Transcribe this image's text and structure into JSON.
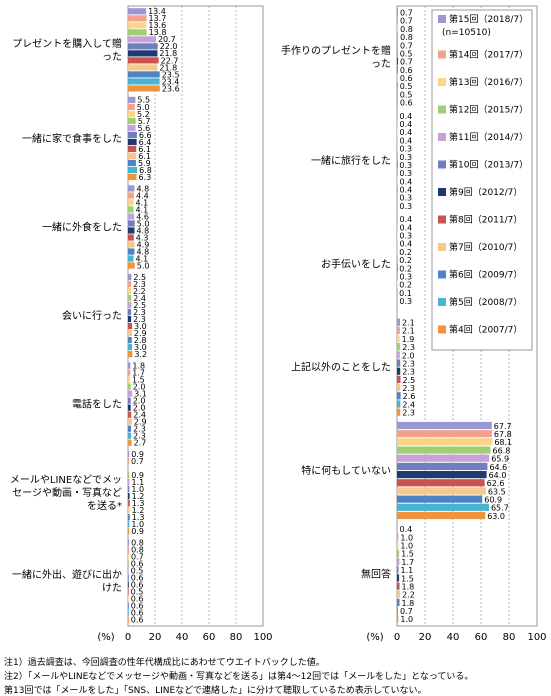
{
  "chart_data": [
    {
      "type": "bar",
      "orientation": "horizontal",
      "xlim": [
        0,
        100
      ],
      "x_ticks": [
        "0",
        "20",
        "40",
        "60",
        "80",
        "100"
      ],
      "unit_label": "(%)",
      "categories": [
        {
          "label": "プレゼントを購入して贈った",
          "values": [
            13.4,
            13.7,
            13.6,
            13.8,
            20.7,
            22.0,
            21.8,
            22.7,
            21.8,
            23.5,
            23.4,
            23.6
          ]
        },
        {
          "label": "一緒に家で食事をした",
          "values": [
            5.5,
            5.0,
            5.2,
            5.7,
            5.6,
            6.6,
            6.4,
            6.1,
            6.1,
            5.9,
            6.8,
            6.3
          ]
        },
        {
          "label": "一緒に外食をした",
          "values": [
            4.8,
            4.4,
            4.1,
            4.1,
            4.6,
            5.0,
            4.8,
            4.3,
            4.9,
            4.8,
            4.1,
            5.0
          ]
        },
        {
          "label": "会いに行った",
          "values": [
            2.5,
            2.3,
            2.2,
            2.4,
            2.5,
            2.3,
            2.3,
            3.0,
            2.9,
            2.8,
            3.0,
            3.2
          ]
        },
        {
          "label": "電話をした",
          "values": [
            1.8,
            1.7,
            1.5,
            2.0,
            3.1,
            2.0,
            2.0,
            2.4,
            2.9,
            2.3,
            2.3,
            2.7
          ]
        },
        {
          "label": "メールやLINEなどでメッセージや動画・写真などを送る*",
          "values": [
            0.9,
            0.7,
            null,
            0.9,
            1.1,
            1.0,
            1.2,
            1.3,
            1.2,
            1.3,
            1.0,
            0.9
          ]
        },
        {
          "label": "一緒に外出、遊びに出かけた",
          "values": [
            0.8,
            0.8,
            0.7,
            0.6,
            0.5,
            0.6,
            0.6,
            0.5,
            0.6,
            0.6,
            0.6,
            0.6
          ]
        }
      ]
    },
    {
      "type": "bar",
      "orientation": "horizontal",
      "xlim": [
        0,
        100
      ],
      "x_ticks": [
        "0",
        "20",
        "40",
        "60",
        "80",
        "100"
      ],
      "unit_label": "(%)",
      "categories": [
        {
          "label": "手作りのプレゼントを贈った",
          "values": [
            0.7,
            0.7,
            0.8,
            0.8,
            0.7,
            0.5,
            0.7,
            0.6,
            0.6,
            0.5,
            0.5,
            0.6
          ]
        },
        {
          "label": "一緒に旅行をした",
          "values": [
            0.4,
            0.4,
            0.4,
            0.4,
            0.3,
            0.3,
            0.3,
            0.3,
            0.4,
            0.4,
            0.3,
            0.3
          ]
        },
        {
          "label": "お手伝いをした",
          "values": [
            0.4,
            0.4,
            0.3,
            0.4,
            0.2,
            0.2,
            0.2,
            0.3,
            0.2,
            0.1,
            0.3,
            null
          ]
        },
        {
          "label": "上記以外のことをした",
          "values": [
            2.1,
            2.1,
            1.9,
            2.3,
            2.0,
            2.3,
            2.3,
            2.5,
            2.3,
            2.6,
            2.4,
            2.3
          ]
        },
        {
          "label": "特に何もしていない",
          "values": [
            67.7,
            67.8,
            68.1,
            66.8,
            65.9,
            64.6,
            64.0,
            62.6,
            63.5,
            60.9,
            65.7,
            63.0
          ]
        },
        {
          "label": "無回答",
          "values": [
            0.4,
            1.0,
            1.0,
            1.5,
            1.7,
            1.1,
            1.5,
            1.8,
            2.2,
            1.8,
            0.7,
            1.0
          ]
        }
      ]
    }
  ],
  "series": [
    {
      "name": "第15回（2018/7）",
      "color": "#9b97d3"
    },
    {
      "name": "第14回（2017/7）",
      "color": "#f2a28c"
    },
    {
      "name": "第13回（2016/7）",
      "color": "#fbd48a"
    },
    {
      "name": "第12回（2015/7）",
      "color": "#9fcf73"
    },
    {
      "name": "第11回（2014/7）",
      "color": "#c5a2dc"
    },
    {
      "name": "第10回（2013/7）",
      "color": "#6f7fbe"
    },
    {
      "name": "第9回（2012/7）",
      "color": "#1f3a6e"
    },
    {
      "name": "第8回（2011/7）",
      "color": "#c9534f"
    },
    {
      "name": "第7回（2010/7）",
      "color": "#f6c88a"
    },
    {
      "name": "第6回（2009/7）",
      "color": "#4f84c4"
    },
    {
      "name": "第5回（2008/7）",
      "color": "#49b4cf"
    },
    {
      "name": "第4回（2007/7）",
      "color": "#f0933e"
    }
  ],
  "legend_sample": "(n=10510)",
  "notes": {
    "n1": "注1）過去調査は、今回調査の性年代構成比にあわせてウエイトバックした値。",
    "n2": "注2）「メールやLINEなどでメッセージや動画・写真などを送る」は第4～12回では「メールをした」となっている。",
    "n3": "第13回では「メールをした」「SNS、LINEなどで連絡した」に分けて聴取しているため表示していない。"
  }
}
